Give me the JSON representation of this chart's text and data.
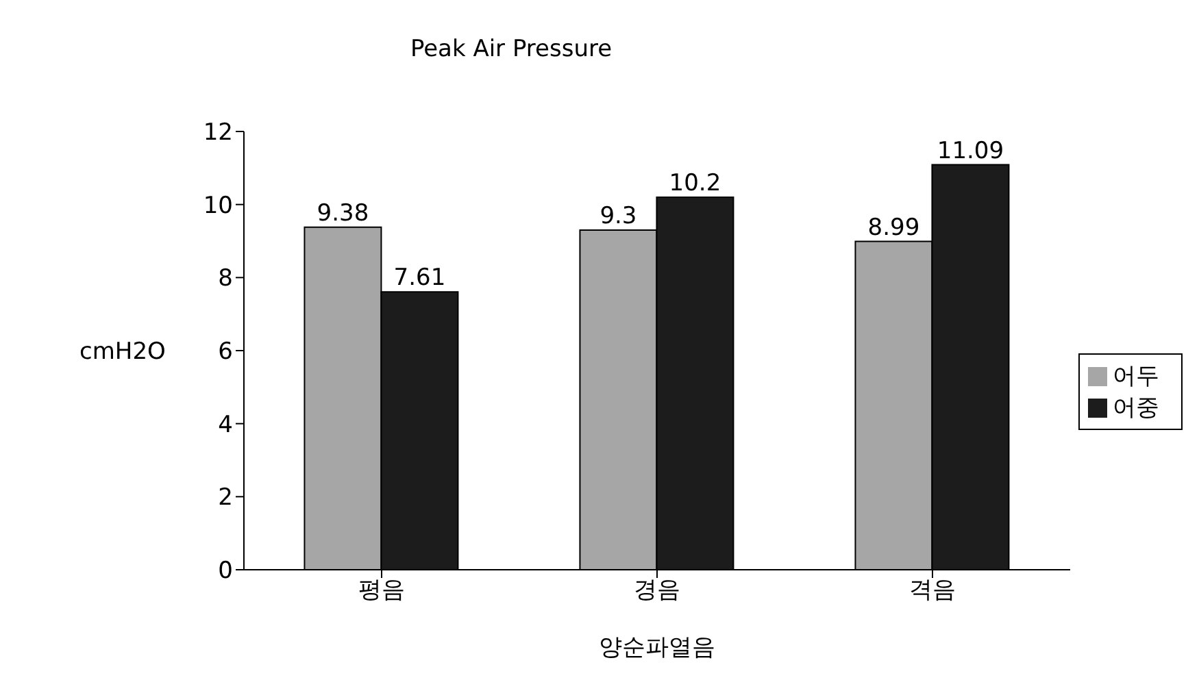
{
  "chart_data": {
    "type": "bar",
    "title": "Peak Air Pressure",
    "xlabel": "양순파열음",
    "ylabel": "cmH2O",
    "categories": [
      "평음",
      "경음",
      "격음"
    ],
    "series": [
      {
        "name": "어두",
        "color": "#a6a6a6",
        "values": [
          9.38,
          9.3,
          8.99
        ]
      },
      {
        "name": "어중",
        "color": "#1c1c1c",
        "values": [
          7.61,
          10.2,
          11.09
        ]
      }
    ],
    "ylim": [
      0,
      12
    ],
    "yticks": [
      0,
      2,
      4,
      6,
      8,
      10,
      12
    ],
    "grid": false,
    "legend": "right",
    "data_labels": true
  }
}
